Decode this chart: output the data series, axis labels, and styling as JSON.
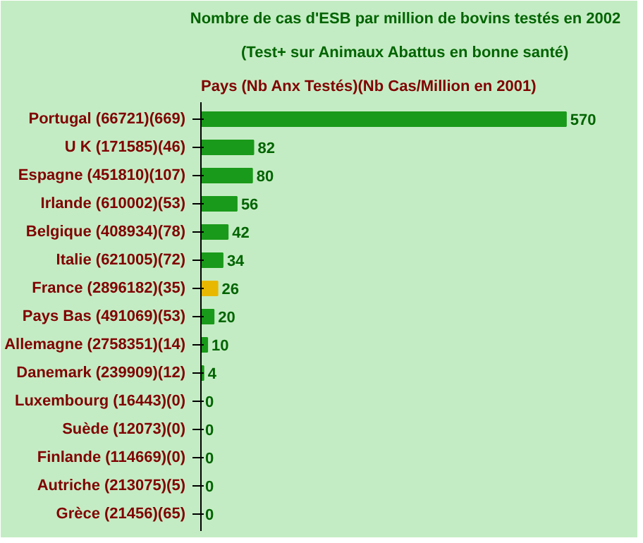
{
  "chart_data": {
    "type": "bar",
    "orientation": "horizontal",
    "title": "Nombre de cas d'ESB par million de bovins testés en 2002",
    "subtitle": "(Test+ sur Animaux Abattus en bonne santé)",
    "ylabel": "Pays (Nb Anx Testés)(Nb Cas/Million en 2001)",
    "categories": [
      "Portugal (66721)(669)",
      "U K (171585)(46)",
      "Espagne (451810)(107)",
      "Irlande (610002)(53)",
      "Belgique (408934)(78)",
      "Italie (621005)(72)",
      "France (2896182)(35)",
      "Pays Bas (491069)(53)",
      "Allemagne (2758351)(14)",
      "Danemark (239909)(12)",
      "Luxembourg (16443)(0)",
      "Suède (12073)(0)",
      "Finlande (114669)(0)",
      "Autriche (213075)(5)",
      "Grèce (21456)(65)"
    ],
    "values": [
      570,
      82,
      80,
      56,
      42,
      34,
      26,
      20,
      10,
      4,
      0,
      0,
      0,
      0,
      0
    ],
    "colors": [
      "#1a9a1a",
      "#1a9a1a",
      "#1a9a1a",
      "#1a9a1a",
      "#1a9a1a",
      "#1a9a1a",
      "#e8b800",
      "#1a9a1a",
      "#1a9a1a",
      "#1a9a1a",
      "#1a9a1a",
      "#1a9a1a",
      "#1a9a1a",
      "#1a9a1a",
      "#1a9a1a"
    ],
    "data_labels": true,
    "grid": false
  }
}
